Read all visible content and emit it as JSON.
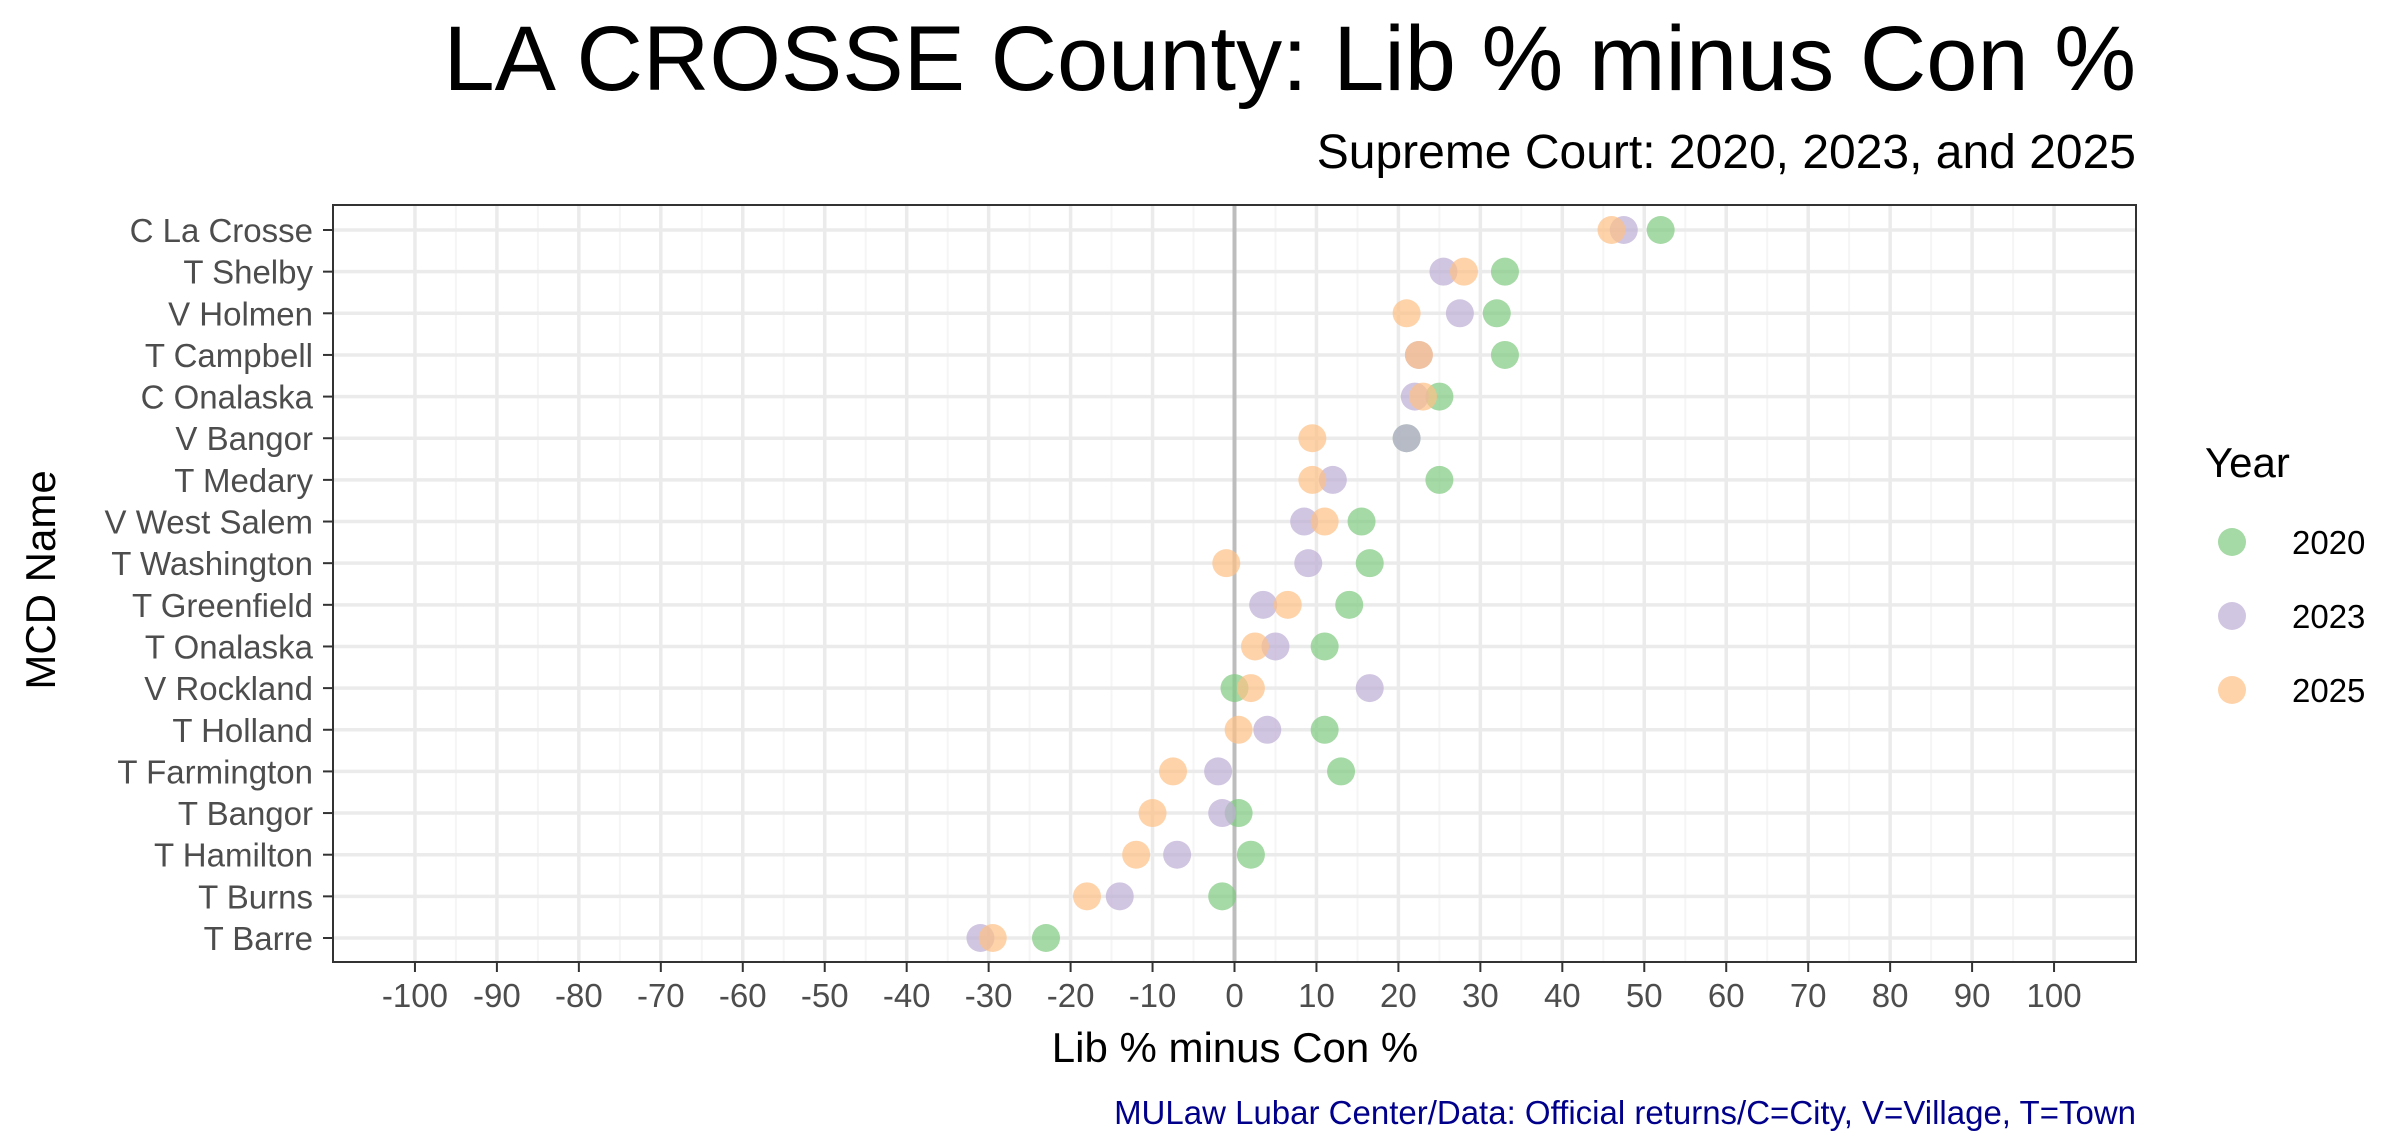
{
  "chart_data": {
    "type": "scatter",
    "title": "LA CROSSE County: Lib % minus Con %",
    "subtitle": "Supreme Court: 2020, 2023, and 2025",
    "xlabel": "Lib % minus Con %",
    "ylabel": "MCD Name",
    "caption": "MULaw Lubar Center/Data: Official returns/C=City, V=Village, T=Town",
    "xlim": [
      -110,
      110
    ],
    "x_ticks": [
      -100,
      -90,
      -80,
      -70,
      -60,
      -50,
      -40,
      -30,
      -20,
      -10,
      0,
      10,
      20,
      30,
      40,
      50,
      60,
      70,
      80,
      90,
      100
    ],
    "x_tick_labels": [
      "-100",
      "-90",
      "-80",
      "-70",
      "-60",
      "-50",
      "-40",
      "-30",
      "-20",
      "-10",
      "0",
      "10",
      "20",
      "30",
      "40",
      "50",
      "60",
      "70",
      "80",
      "90",
      "100"
    ],
    "grid": true,
    "reference_line_x": 0,
    "legend": {
      "title": "Year",
      "position": "right"
    },
    "categories": [
      "C La Crosse",
      "T Shelby",
      "V Holmen",
      "T Campbell",
      "C Onalaska",
      "V Bangor",
      "T Medary",
      "V West Salem",
      "T Washington",
      "T Greenfield",
      "T Onalaska",
      "V Rockland",
      "T Holland",
      "T Farmington",
      "T Bangor",
      "T Hamilton",
      "T Burns",
      "T Barre"
    ],
    "series": [
      {
        "name": "2020",
        "color": "#7fc97f",
        "values": [
          52,
          33,
          32,
          33,
          25,
          21,
          25,
          15.5,
          16.5,
          14,
          11,
          0,
          11,
          13,
          0.5,
          2,
          -1.5,
          -23
        ]
      },
      {
        "name": "2023",
        "color": "#beaed4",
        "values": [
          47.5,
          25.5,
          27.5,
          22.5,
          22,
          21,
          12,
          8.5,
          9,
          3.5,
          5,
          16.5,
          4,
          -2,
          -1.5,
          -7,
          -14,
          -31
        ]
      },
      {
        "name": "2025",
        "color": "#fdc086",
        "values": [
          46,
          28,
          21,
          22.5,
          23,
          9.5,
          9.5,
          11,
          -1,
          6.5,
          2.5,
          2,
          0.5,
          -7.5,
          -10,
          -12,
          -18,
          -29.5
        ]
      }
    ]
  },
  "colors": {
    "panel_border": "#333333",
    "grid_major": "#ebebeb",
    "grid_minor": "#f5f5f5",
    "zero_line": "#bdbdbd"
  }
}
